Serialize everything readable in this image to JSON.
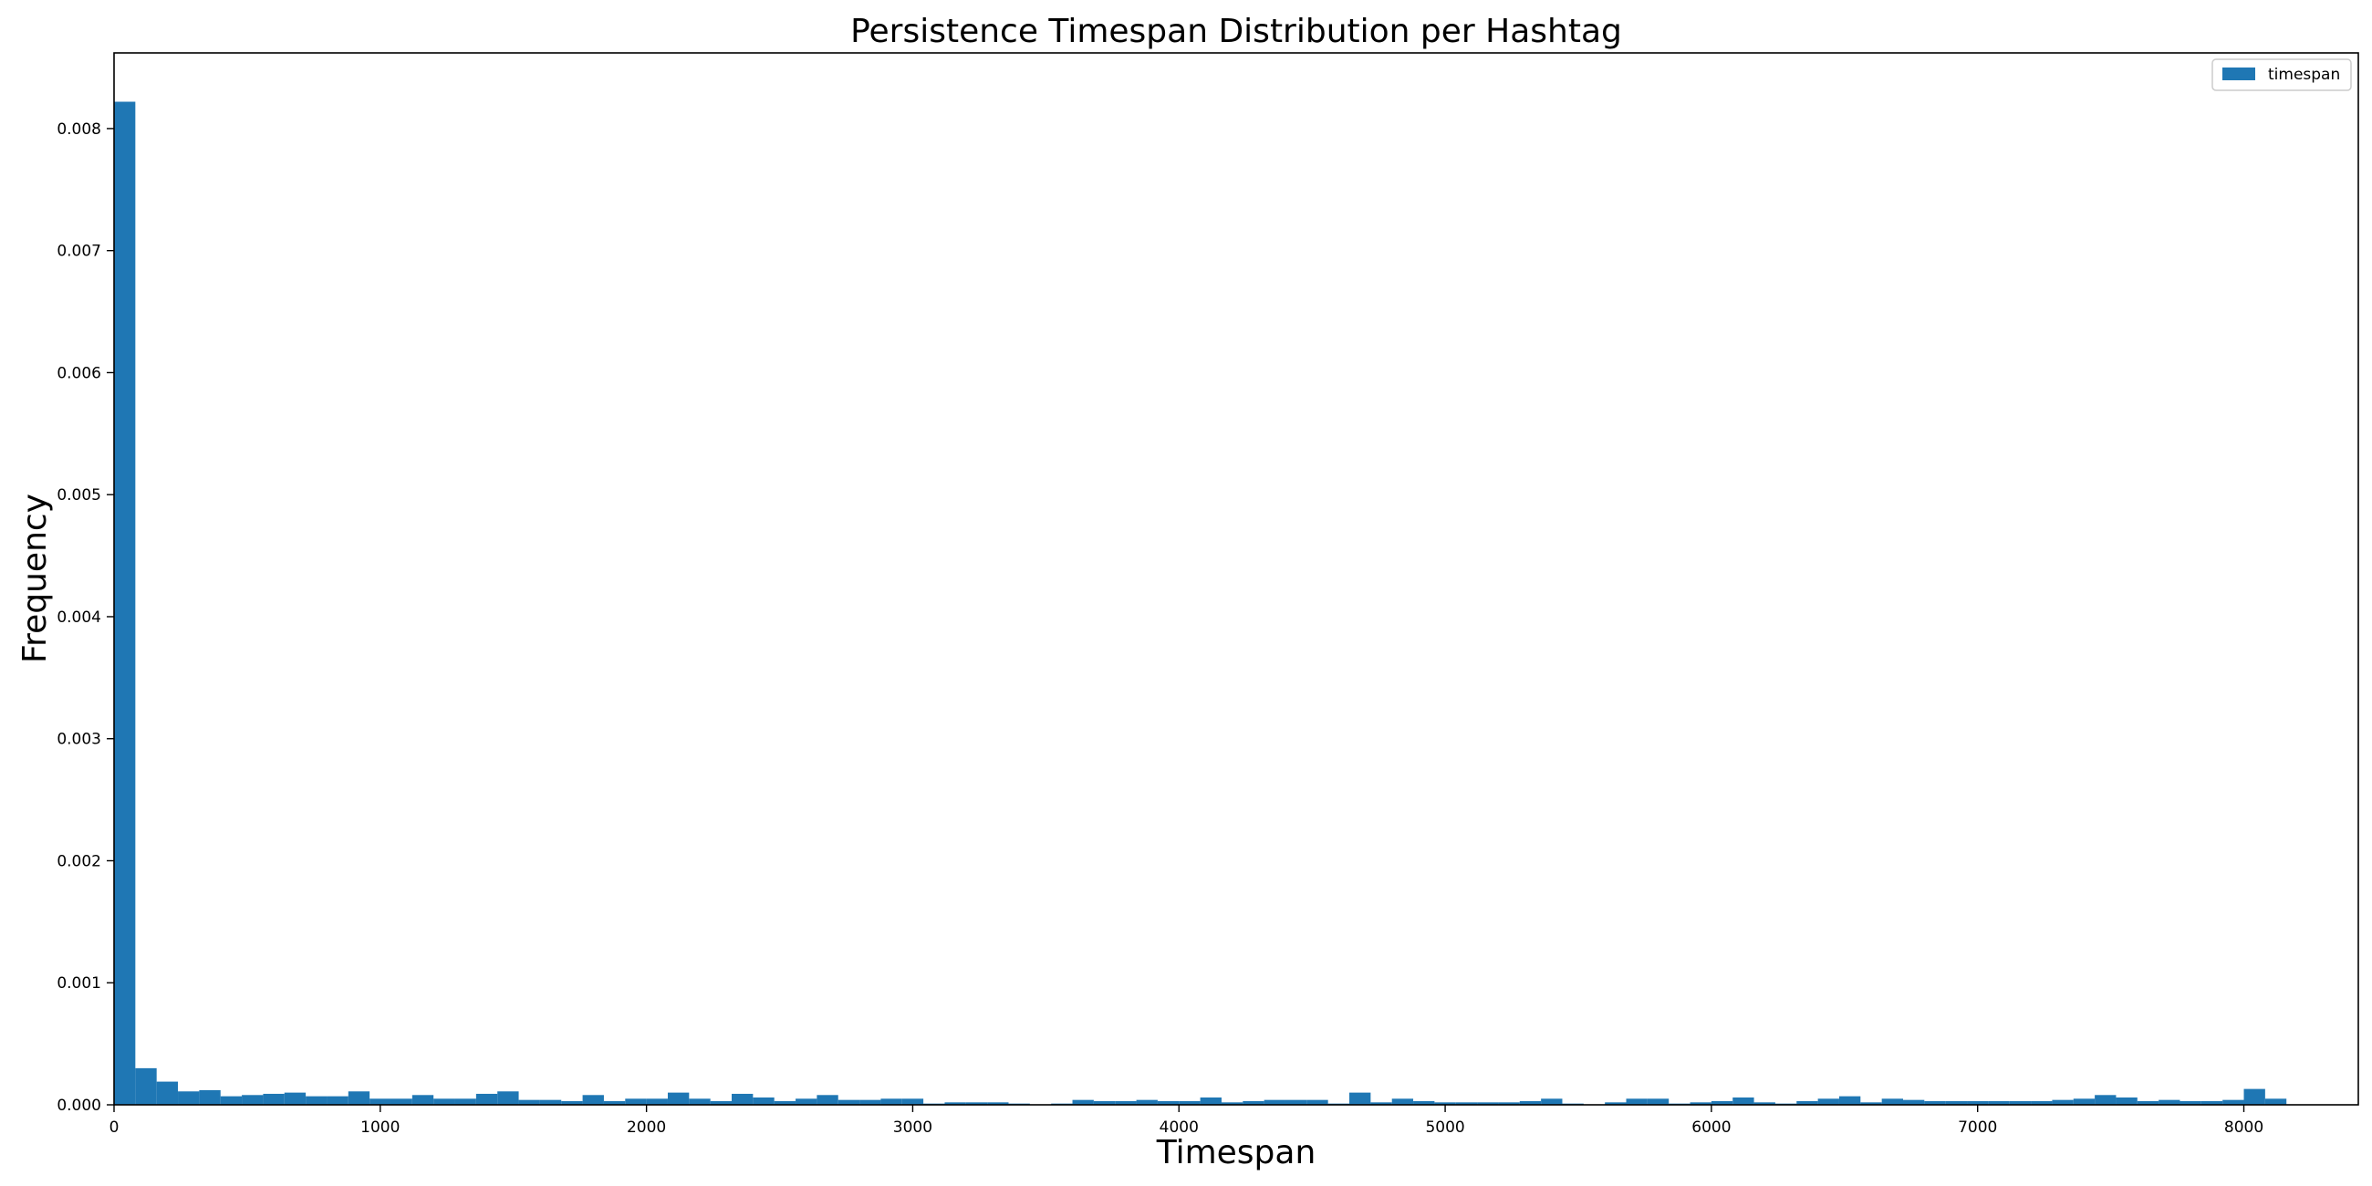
{
  "chart_data": {
    "type": "bar",
    "title": "Persistence Timespan Distribution per Hashtag",
    "xlabel": "Timespan",
    "ylabel": "Frequency",
    "xlim": [
      0,
      8430
    ],
    "ylim": [
      0,
      0.00862
    ],
    "x_ticks": [
      "0",
      "1000",
      "2000",
      "3000",
      "4000",
      "5000",
      "6000",
      "7000",
      "8000"
    ],
    "y_ticks": [
      "0.000",
      "0.001",
      "0.002",
      "0.003",
      "0.004",
      "0.005",
      "0.006",
      "0.007",
      "0.008"
    ],
    "legend_position": "top-right",
    "bar_color": "#1f77b4",
    "bin_start": 0,
    "bin_width": 80,
    "series": [
      {
        "name": "timespan",
        "values": [
          0.00822,
          0.0003,
          0.00019,
          0.00011,
          0.00012,
          7e-05,
          8e-05,
          9e-05,
          0.0001,
          7e-05,
          7e-05,
          0.00011,
          5e-05,
          5e-05,
          8e-05,
          5e-05,
          5e-05,
          9e-05,
          0.00011,
          4e-05,
          4e-05,
          3e-05,
          8e-05,
          3e-05,
          5e-05,
          5e-05,
          0.0001,
          5e-05,
          3e-05,
          9e-05,
          6e-05,
          3e-05,
          5e-05,
          8e-05,
          4e-05,
          4e-05,
          5e-05,
          5e-05,
          1e-05,
          2e-05,
          2e-05,
          2e-05,
          1e-05,
          0.0,
          1e-05,
          4e-05,
          3e-05,
          3e-05,
          4e-05,
          3e-05,
          3e-05,
          6e-05,
          2e-05,
          3e-05,
          4e-05,
          4e-05,
          4e-05,
          1e-05,
          0.0001,
          2e-05,
          5e-05,
          3e-05,
          2e-05,
          2e-05,
          2e-05,
          2e-05,
          3e-05,
          5e-05,
          1e-05,
          0.0,
          2e-05,
          5e-05,
          5e-05,
          1e-05,
          2e-05,
          3e-05,
          6e-05,
          2e-05,
          1e-05,
          3e-05,
          5e-05,
          7e-05,
          2e-05,
          5e-05,
          4e-05,
          3e-05,
          3e-05,
          3e-05,
          3e-05,
          3e-05,
          3e-05,
          4e-05,
          5e-05,
          8e-05,
          6e-05,
          3e-05,
          4e-05,
          3e-05,
          3e-05,
          4e-05,
          0.00013,
          5e-05
        ]
      }
    ]
  }
}
